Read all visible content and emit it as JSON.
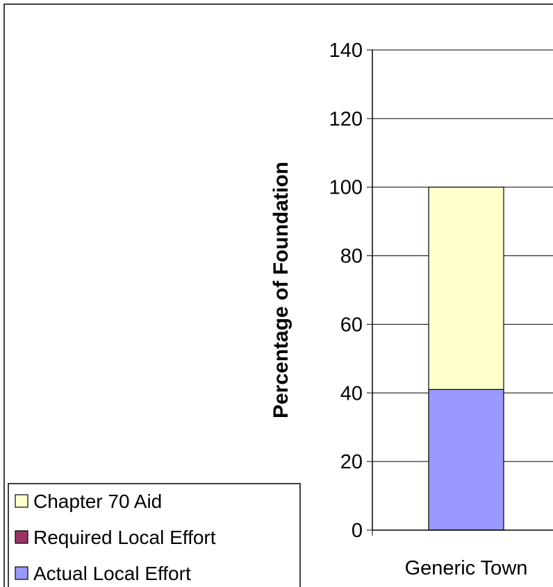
{
  "chart_data": {
    "type": "bar",
    "stacked": true,
    "categories": [
      "Generic Town"
    ],
    "series": [
      {
        "name": "Actual Local Effort",
        "values": [
          41
        ],
        "color": "#9999ff"
      },
      {
        "name": "Required Local Effort",
        "values": [
          0
        ],
        "color": "#993366"
      },
      {
        "name": "Chapter 70 Aid",
        "values": [
          59
        ],
        "color": "#ffffcc"
      }
    ],
    "legend_order": [
      "Chapter 70 Aid",
      "Required Local Effort",
      "Actual Local Effort"
    ],
    "ylabel": "Percentage of Foundation",
    "ylim": [
      0,
      140
    ],
    "yticks": [
      0,
      20,
      40,
      60,
      80,
      100,
      120,
      140
    ],
    "grid": true,
    "legend": "bottom-left"
  }
}
